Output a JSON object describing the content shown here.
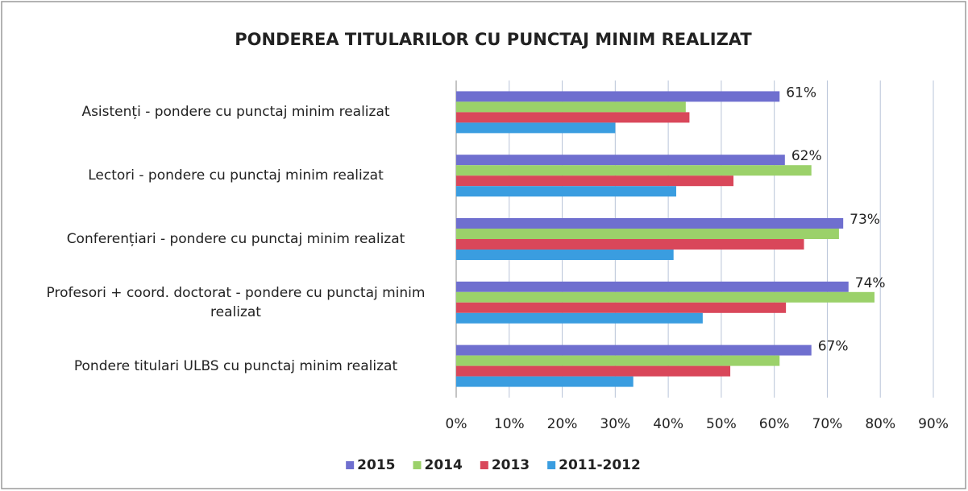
{
  "chart_data": {
    "type": "bar",
    "orientation": "horizontal",
    "title": "PONDEREA TITULARILOR CU PUNCTAJ MINIM REALIZAT",
    "categories": [
      "Asistenți - pondere cu punctaj minim realizat",
      "Lectori - pondere cu punctaj minim realizat",
      "Conferențiari - pondere cu punctaj minim realizat",
      "Profesori + coord. doctorat - pondere cu punctaj minim realizat",
      "Pondere titulari ULBS cu punctaj minim realizat"
    ],
    "series": [
      {
        "name": "2015",
        "color": "#6f6fcf",
        "values": [
          61,
          62,
          73,
          74,
          67
        ],
        "value_labels": [
          "61%",
          "62%",
          "73%",
          "74%",
          "67%"
        ]
      },
      {
        "name": "2014",
        "color": "#9bd16a",
        "values": [
          43.3,
          67,
          72.2,
          78.9,
          61
        ]
      },
      {
        "name": "2013",
        "color": "#d9475a",
        "values": [
          44,
          52.3,
          65.6,
          62.2,
          51.7
        ]
      },
      {
        "name": "2011-2012",
        "color": "#3a9de0",
        "values": [
          30,
          41.5,
          41,
          46.5,
          33.4
        ]
      }
    ],
    "xlim": [
      0,
      90
    ],
    "xticks": [
      {
        "value": 0,
        "label": "0%"
      },
      {
        "value": 10,
        "label": "10%"
      },
      {
        "value": 20,
        "label": "20%"
      },
      {
        "value": 30,
        "label": "30%"
      },
      {
        "value": 40,
        "label": "40%"
      },
      {
        "value": 50,
        "label": "50%"
      },
      {
        "value": 60,
        "label": "60%"
      },
      {
        "value": 70,
        "label": "70%"
      },
      {
        "value": 80,
        "label": "80%"
      },
      {
        "value": 90,
        "label": "90%"
      }
    ],
    "grid": true,
    "legend": "bottom"
  }
}
